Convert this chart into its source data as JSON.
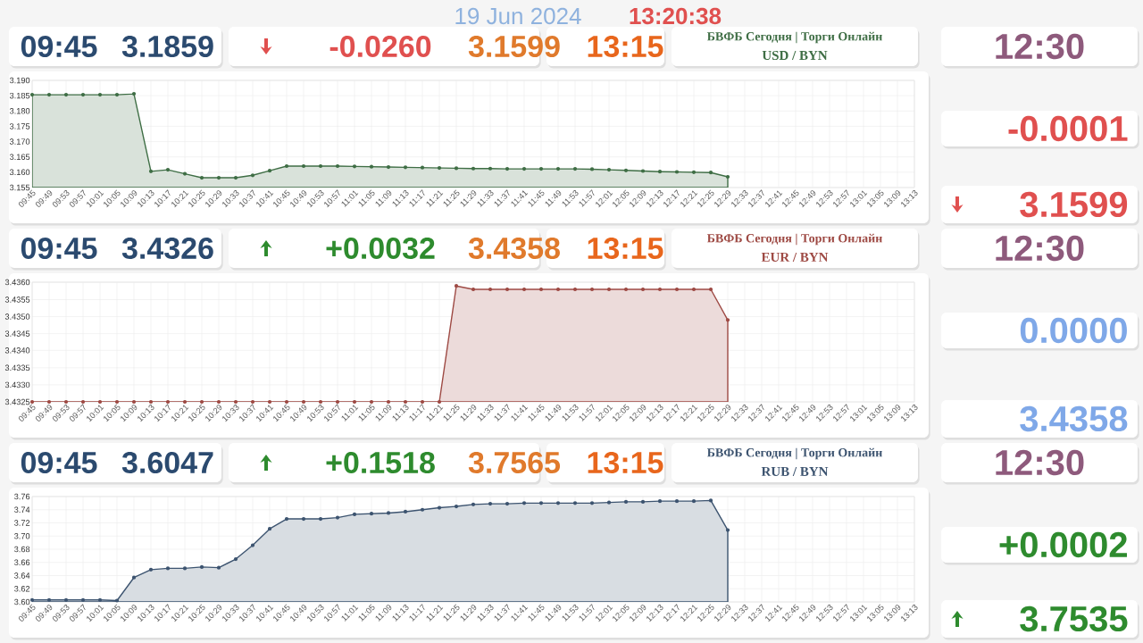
{
  "chart_data": [
    {
      "type": "other",
      "annotations": [
        "19 Jun 2024",
        "13:20:38"
      ]
    },
    {
      "type": "area",
      "title": "USD / BYN",
      "subtitle": "БВФБ Сегодня | Торги Онлайн",
      "grid": true,
      "marker": "circle",
      "annotations": [
        "09:45",
        "3.1859",
        "-0.0260",
        "3.1599",
        "13:15",
        "12:30",
        "-0.0001",
        "3.1599"
      ],
      "categories": [
        "09:45",
        "09:49",
        "09:53",
        "09:57",
        "10:01",
        "10:05",
        "10:09",
        "10:13",
        "10:17",
        "10:21",
        "10:25",
        "10:29",
        "10:33",
        "10:37",
        "10:41",
        "10:45",
        "10:49",
        "10:53",
        "10:57",
        "11:01",
        "11:05",
        "11:09",
        "11:13",
        "11:17",
        "11:21",
        "11:25",
        "11:29",
        "11:33",
        "11:37",
        "11:41",
        "11:45",
        "11:49",
        "11:53",
        "11:57",
        "12:01",
        "12:05",
        "12:09",
        "12:13",
        "12:17",
        "12:21",
        "12:25",
        "12:29",
        "12:33",
        "12:37",
        "12:41",
        "12:45",
        "12:49",
        "12:53",
        "12:57",
        "13:01",
        "13:05",
        "13:09",
        "13:13"
      ],
      "series": [
        {
          "color": "#3f6e45",
          "values": [
            3.1853,
            3.1853,
            3.1853,
            3.1853,
            3.1853,
            3.1853,
            3.1856,
            3.1603,
            3.1608,
            3.1595,
            3.1582,
            3.1582,
            3.1582,
            3.159,
            3.1605,
            3.162,
            3.162,
            3.162,
            3.162,
            3.1619,
            3.1618,
            3.1617,
            3.1616,
            3.1615,
            3.1614,
            3.1613,
            3.1612,
            3.1612,
            3.1611,
            3.1611,
            3.1611,
            3.1611,
            3.1611,
            3.161,
            3.1608,
            3.1606,
            3.1604,
            3.1602,
            3.1601,
            3.16,
            3.1599,
            3.1585,
            null,
            null,
            null,
            null,
            null,
            null,
            null,
            null,
            null,
            null,
            null
          ]
        }
      ],
      "ylim": [
        3.155,
        3.19
      ],
      "yticks": [
        {
          "value": 3.155,
          "label": "3.155"
        },
        {
          "value": 3.16,
          "label": "3.160"
        },
        {
          "value": 3.165,
          "label": "3.165"
        },
        {
          "value": 3.17,
          "label": "3.170"
        },
        {
          "value": 3.175,
          "label": "3.175"
        },
        {
          "value": 3.18,
          "label": "3.180"
        },
        {
          "value": 3.185,
          "label": "3.185"
        },
        {
          "value": 3.19,
          "label": "3.190"
        }
      ]
    },
    {
      "type": "area",
      "title": "EUR / BYN",
      "subtitle": "БВФБ Сегодня | Торги Онлайн",
      "grid": true,
      "marker": "circle",
      "annotations": [
        "09:45",
        "3.4326",
        "+0.0032",
        "3.4358",
        "13:15",
        "12:30",
        "0.0000",
        "3.4358"
      ],
      "categories": [
        "09:45",
        "09:49",
        "09:53",
        "09:57",
        "10:01",
        "10:05",
        "10:09",
        "10:13",
        "10:17",
        "10:21",
        "10:25",
        "10:29",
        "10:33",
        "10:37",
        "10:41",
        "10:45",
        "10:49",
        "10:53",
        "10:57",
        "11:01",
        "11:05",
        "11:09",
        "11:13",
        "11:17",
        "11:21",
        "11:25",
        "11:29",
        "11:33",
        "11:37",
        "11:41",
        "11:45",
        "11:49",
        "11:53",
        "11:57",
        "12:01",
        "12:05",
        "12:09",
        "12:13",
        "12:17",
        "12:21",
        "12:25",
        "12:29",
        "12:33",
        "12:37",
        "12:41",
        "12:45",
        "12:49",
        "12:53",
        "12:57",
        "13:01",
        "13:05",
        "13:09",
        "13:13"
      ],
      "series": [
        {
          "color": "#9e4a44",
          "values": [
            3.4325,
            3.4325,
            3.4325,
            3.4325,
            3.4325,
            3.4325,
            3.4325,
            3.4325,
            3.4325,
            3.4325,
            3.4325,
            3.4325,
            3.4325,
            3.4325,
            3.4325,
            3.4325,
            3.4325,
            3.4325,
            3.4325,
            3.4325,
            3.4325,
            3.4325,
            3.4325,
            3.4325,
            3.4325,
            3.4359,
            3.4358,
            3.4358,
            3.4358,
            3.4358,
            3.4358,
            3.4358,
            3.4358,
            3.4358,
            3.4358,
            3.4358,
            3.4358,
            3.4358,
            3.4358,
            3.4358,
            3.4358,
            3.4349,
            null,
            null,
            null,
            null,
            null,
            null,
            null,
            null,
            null,
            null,
            null
          ]
        }
      ],
      "ylim": [
        3.4325,
        3.436
      ],
      "yticks": [
        {
          "value": 3.4325,
          "label": "3.4325"
        },
        {
          "value": 3.433,
          "label": "3.4330"
        },
        {
          "value": 3.4335,
          "label": "3.4335"
        },
        {
          "value": 3.434,
          "label": "3.4340"
        },
        {
          "value": 3.4345,
          "label": "3.4345"
        },
        {
          "value": 3.435,
          "label": "3.4350"
        },
        {
          "value": 3.4355,
          "label": "3.4355"
        },
        {
          "value": 3.436,
          "label": "3.4360"
        }
      ]
    },
    {
      "type": "area",
      "title": "RUB / BYN",
      "subtitle": "БВФБ Сегодня | Торги Онлайн",
      "grid": true,
      "marker": "circle",
      "annotations": [
        "09:45",
        "3.6047",
        "+0.1518",
        "3.7565",
        "13:15",
        "12:30",
        "+0.0002",
        "3.7535"
      ],
      "categories": [
        "09:45",
        "09:49",
        "09:53",
        "09:57",
        "10:01",
        "10:05",
        "10:09",
        "10:13",
        "10:17",
        "10:21",
        "10:25",
        "10:29",
        "10:33",
        "10:37",
        "10:41",
        "10:45",
        "10:49",
        "10:53",
        "10:57",
        "11:01",
        "11:05",
        "11:09",
        "11:13",
        "11:17",
        "11:21",
        "11:25",
        "11:29",
        "11:33",
        "11:37",
        "11:41",
        "11:45",
        "11:49",
        "11:53",
        "11:57",
        "12:01",
        "12:05",
        "12:09",
        "12:13",
        "12:17",
        "12:21",
        "12:25",
        "12:29",
        "12:33",
        "12:37",
        "12:41",
        "12:45",
        "12:49",
        "12:53",
        "12:57",
        "13:01",
        "13:05",
        "13:09",
        "13:13"
      ],
      "series": [
        {
          "color": "#3d5470",
          "values": [
            3.603,
            3.603,
            3.603,
            3.603,
            3.603,
            3.602,
            3.637,
            3.649,
            3.651,
            3.651,
            3.653,
            3.652,
            3.665,
            3.686,
            3.711,
            3.726,
            3.726,
            3.726,
            3.728,
            3.733,
            3.734,
            3.735,
            3.737,
            3.74,
            3.743,
            3.745,
            3.748,
            3.749,
            3.749,
            3.75,
            3.75,
            3.75,
            3.75,
            3.75,
            3.751,
            3.752,
            3.752,
            3.753,
            3.753,
            3.753,
            3.754,
            3.709,
            null,
            null,
            null,
            null,
            null,
            null,
            null,
            null,
            null,
            null,
            null
          ]
        }
      ],
      "ylim": [
        3.6,
        3.76
      ],
      "yticks": [
        {
          "value": 3.6,
          "label": "3.60"
        },
        {
          "value": 3.62,
          "label": "3.62"
        },
        {
          "value": 3.64,
          "label": "3.64"
        },
        {
          "value": 3.66,
          "label": "3.66"
        },
        {
          "value": 3.68,
          "label": "3.68"
        },
        {
          "value": 3.7,
          "label": "3.70"
        },
        {
          "value": 3.72,
          "label": "3.72"
        },
        {
          "value": 3.74,
          "label": "3.74"
        },
        {
          "value": 3.76,
          "label": "3.76"
        }
      ]
    }
  ]
}
